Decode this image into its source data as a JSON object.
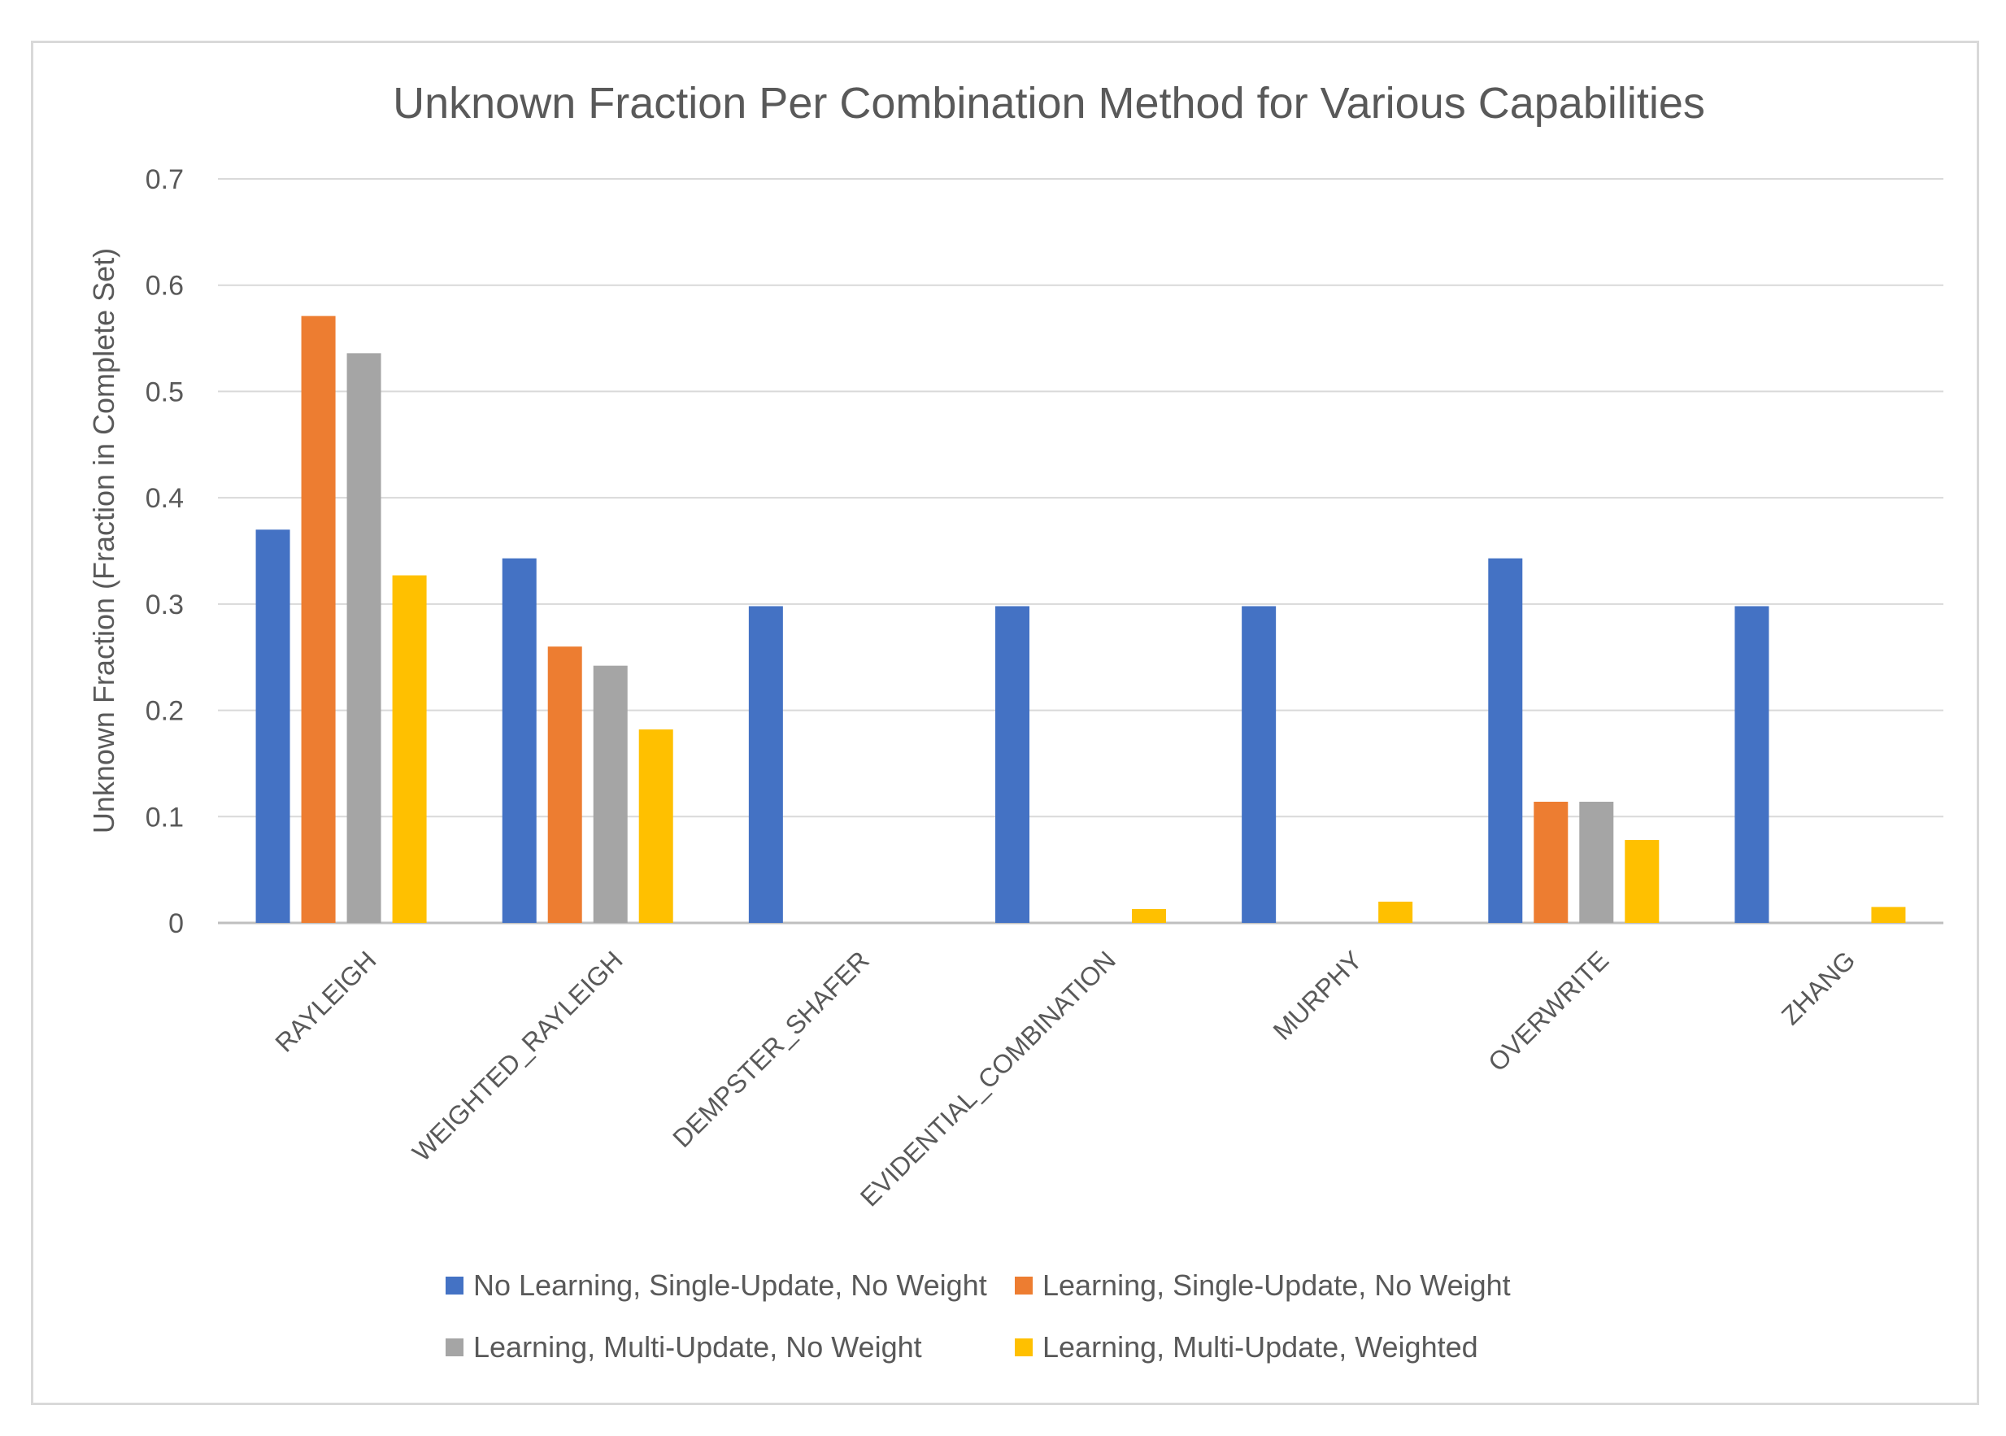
{
  "chart_data": {
    "type": "bar",
    "title": "Unknown Fraction Per Combination Method for Various Capabilities",
    "xlabel": "",
    "ylabel": "Unknown Fraction (Fraction in Complete Set)",
    "ylim": [
      0,
      0.7
    ],
    "yticks": [
      "0",
      "0.1",
      "0.2",
      "0.3",
      "0.4",
      "0.5",
      "0.6",
      "0.7"
    ],
    "ytick_values": [
      0,
      0.1,
      0.2,
      0.3,
      0.4,
      0.5,
      0.6,
      0.7
    ],
    "grid": true,
    "legend_position": "bottom",
    "categories": [
      "RAYLEIGH",
      "WEIGHTED_RAYLEIGH",
      "DEMPSTER_SHAFER",
      "EVIDENTIAL_COMBINATION",
      "MURPHY",
      "OVERWRITE",
      "ZHANG"
    ],
    "series": [
      {
        "name": "No Learning, Single-Update, No Weight",
        "color": "#4472c4",
        "values": [
          0.37,
          0.343,
          0.298,
          0.298,
          0.298,
          0.343,
          0.298
        ]
      },
      {
        "name": "Learning, Single-Update, No Weight",
        "color": "#ed7d31",
        "values": [
          0.571,
          0.26,
          0,
          0,
          0,
          0.114,
          0
        ]
      },
      {
        "name": "Learning, Multi-Update, No Weight",
        "color": "#a5a5a5",
        "values": [
          0.536,
          0.242,
          0,
          0,
          0,
          0.114,
          0
        ]
      },
      {
        "name": "Learning, Multi-Update, Weighted",
        "color": "#ffc000",
        "values": [
          0.327,
          0.182,
          0,
          0.013,
          0.02,
          0.078,
          0.015
        ]
      }
    ]
  }
}
